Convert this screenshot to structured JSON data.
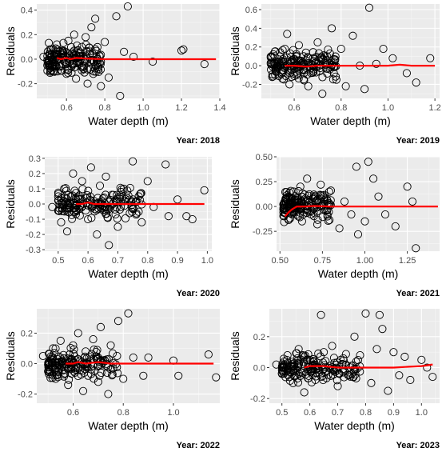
{
  "chart_data": [
    {
      "type": "scatter",
      "caption": "Year: 2018",
      "xlabel": "Water depth (m)",
      "ylabel": "Residuals",
      "xlim": [
        0.445,
        1.4
      ],
      "ylim": [
        -0.32,
        0.45
      ],
      "xticks": [
        {
          "v": 0.6,
          "t": "0.6"
        },
        {
          "v": 0.8,
          "t": "0.8"
        },
        {
          "v": 1.0,
          "t": "1.0"
        },
        {
          "v": 1.2,
          "t": "1.2"
        },
        {
          "v": 1.4,
          "t": "1.4"
        }
      ],
      "yticks": [
        {
          "v": -0.2,
          "t": "-0.2"
        },
        {
          "v": 0.0,
          "t": "0.0"
        },
        {
          "v": 0.2,
          "t": "0.2"
        },
        {
          "v": 0.4,
          "t": "0.4"
        }
      ],
      "points_sampled": [
        [
          0.48,
          0.02
        ],
        [
          0.5,
          -0.05
        ],
        [
          0.52,
          0.08
        ],
        [
          0.53,
          -0.1
        ],
        [
          0.55,
          0.12
        ],
        [
          0.56,
          0.0
        ],
        [
          0.57,
          -0.06
        ],
        [
          0.58,
          0.05
        ],
        [
          0.6,
          -0.12
        ],
        [
          0.61,
          0.15
        ],
        [
          0.62,
          0.03
        ],
        [
          0.63,
          -0.04
        ],
        [
          0.64,
          0.2
        ],
        [
          0.65,
          -0.16
        ],
        [
          0.66,
          0.07
        ],
        [
          0.67,
          -0.02
        ],
        [
          0.68,
          0.1
        ],
        [
          0.69,
          -0.08
        ],
        [
          0.7,
          0.18
        ],
        [
          0.71,
          -0.2
        ],
        [
          0.72,
          0.04
        ],
        [
          0.73,
          0.26
        ],
        [
          0.74,
          -0.12
        ],
        [
          0.75,
          0.33
        ],
        [
          0.76,
          0.0
        ],
        [
          0.78,
          -0.22
        ],
        [
          0.8,
          0.14
        ],
        [
          0.82,
          -0.15
        ],
        [
          0.86,
          0.35
        ],
        [
          0.88,
          -0.3
        ],
        [
          0.9,
          0.06
        ],
        [
          0.92,
          0.43
        ],
        [
          0.95,
          0.02
        ],
        [
          1.05,
          -0.02
        ],
        [
          1.2,
          0.07
        ],
        [
          1.21,
          0.08
        ],
        [
          1.32,
          -0.04
        ]
      ],
      "fit_line": {
        "x": [
          0.55,
          0.57,
          0.6,
          0.62,
          0.65,
          0.7,
          0.8,
          1.0,
          1.2,
          1.38
        ],
        "y": [
          0.01,
          0.0,
          0.01,
          0.0,
          0.01,
          0.005,
          0.0,
          0.0,
          0.0,
          0.0
        ]
      }
    },
    {
      "type": "scatter",
      "caption": "Year: 2019",
      "xlabel": "Water depth (m)",
      "ylabel": "Residuals",
      "xlim": [
        0.46,
        1.22
      ],
      "ylim": [
        -0.35,
        0.66
      ],
      "xticks": [
        {
          "v": 0.6,
          "t": "0.6"
        },
        {
          "v": 0.8,
          "t": "0.8"
        },
        {
          "v": 1.0,
          "t": "1.0"
        },
        {
          "v": 1.2,
          "t": "1.2"
        }
      ],
      "yticks": [
        {
          "v": -0.2,
          "t": "-0.2"
        },
        {
          "v": 0.0,
          "t": "0.0"
        },
        {
          "v": 0.2,
          "t": "0.2"
        },
        {
          "v": 0.4,
          "t": "0.4"
        },
        {
          "v": 0.6,
          "t": "0.6"
        }
      ],
      "points_sampled": [
        [
          0.5,
          0.03
        ],
        [
          0.52,
          -0.06
        ],
        [
          0.54,
          0.1
        ],
        [
          0.55,
          -0.14
        ],
        [
          0.56,
          0.18
        ],
        [
          0.57,
          0.34
        ],
        [
          0.58,
          -0.2
        ],
        [
          0.6,
          0.05
        ],
        [
          0.61,
          -0.1
        ],
        [
          0.62,
          0.22
        ],
        [
          0.63,
          0.0
        ],
        [
          0.64,
          -0.04
        ],
        [
          0.65,
          0.14
        ],
        [
          0.66,
          -0.22
        ],
        [
          0.68,
          0.08
        ],
        [
          0.7,
          0.25
        ],
        [
          0.72,
          -0.3
        ],
        [
          0.74,
          0.1
        ],
        [
          0.76,
          0.4
        ],
        [
          0.78,
          -0.15
        ],
        [
          0.8,
          0.18
        ],
        [
          0.82,
          -0.22
        ],
        [
          0.85,
          0.32
        ],
        [
          0.88,
          0.0
        ],
        [
          0.9,
          -0.25
        ],
        [
          0.92,
          0.62
        ],
        [
          0.95,
          0.02
        ],
        [
          0.98,
          0.18
        ],
        [
          1.02,
          0.08
        ],
        [
          1.08,
          -0.08
        ],
        [
          1.12,
          -0.18
        ],
        [
          1.18,
          0.08
        ]
      ],
      "fit_line": {
        "x": [
          0.56,
          0.6,
          0.65,
          0.7,
          0.8,
          0.9,
          1.0,
          1.05,
          1.1,
          1.2
        ],
        "y": [
          0.0,
          0.0,
          -0.01,
          0.0,
          0.0,
          0.0,
          0.0,
          0.01,
          0.0,
          0.0
        ]
      }
    },
    {
      "type": "scatter",
      "caption": "Year: 2020",
      "xlabel": "Water depth (m)",
      "ylabel": "Residuals",
      "xlim": [
        0.455,
        1.015
      ],
      "ylim": [
        -0.31,
        0.31
      ],
      "xticks": [
        {
          "v": 0.5,
          "t": "0.5"
        },
        {
          "v": 0.6,
          "t": "0.6"
        },
        {
          "v": 0.7,
          "t": "0.7"
        },
        {
          "v": 0.8,
          "t": "0.8"
        },
        {
          "v": 0.9,
          "t": "0.9"
        },
        {
          "v": 1.0,
          "t": "1.0"
        }
      ],
      "yticks": [
        {
          "v": -0.3,
          "t": "-0.3"
        },
        {
          "v": -0.2,
          "t": "-0.2"
        },
        {
          "v": -0.1,
          "t": "-0.1"
        },
        {
          "v": 0.0,
          "t": "0.0"
        },
        {
          "v": 0.1,
          "t": "0.1"
        },
        {
          "v": 0.2,
          "t": "0.2"
        },
        {
          "v": 0.3,
          "t": "0.3"
        }
      ],
      "points_sampled": [
        [
          0.48,
          -0.02
        ],
        [
          0.5,
          0.05
        ],
        [
          0.51,
          -0.12
        ],
        [
          0.52,
          0.1
        ],
        [
          0.53,
          -0.18
        ],
        [
          0.55,
          0.2
        ],
        [
          0.56,
          -0.05
        ],
        [
          0.58,
          0.15
        ],
        [
          0.6,
          -0.1
        ],
        [
          0.61,
          0.24
        ],
        [
          0.62,
          0.02
        ],
        [
          0.63,
          -0.2
        ],
        [
          0.64,
          0.12
        ],
        [
          0.65,
          -0.04
        ],
        [
          0.66,
          0.18
        ],
        [
          0.67,
          -0.27
        ],
        [
          0.68,
          0.06
        ],
        [
          0.7,
          -0.15
        ],
        [
          0.72,
          0.1
        ],
        [
          0.74,
          -0.06
        ],
        [
          0.75,
          0.28
        ],
        [
          0.77,
          0.05
        ],
        [
          0.78,
          -0.12
        ],
        [
          0.8,
          0.15
        ],
        [
          0.82,
          -0.02
        ],
        [
          0.86,
          0.26
        ],
        [
          0.87,
          -0.08
        ],
        [
          0.9,
          0.03
        ],
        [
          0.93,
          -0.08
        ],
        [
          0.95,
          -0.1
        ],
        [
          0.99,
          0.09
        ]
      ],
      "fit_line": {
        "x": [
          0.56,
          0.58,
          0.6,
          0.62,
          0.65,
          0.7,
          0.8,
          0.9,
          0.99
        ],
        "y": [
          0.0,
          0.0,
          0.01,
          0.0,
          0.0,
          0.0,
          0.0,
          0.0,
          0.0
        ]
      }
    },
    {
      "type": "scatter",
      "caption": "Year: 2021",
      "xlabel": "Water depth (m)",
      "ylabel": "Residuals",
      "xlim": [
        0.48,
        1.44
      ],
      "ylim": [
        -0.45,
        0.5
      ],
      "xticks": [
        {
          "v": 0.5,
          "t": "0.50"
        },
        {
          "v": 0.75,
          "t": "0.75"
        },
        {
          "v": 1.0,
          "t": "1.00"
        },
        {
          "v": 1.25,
          "t": "1.25"
        }
      ],
      "yticks": [
        {
          "v": -0.25,
          "t": "-0.25"
        },
        {
          "v": 0.0,
          "t": "0.00"
        },
        {
          "v": 0.25,
          "t": "0.25"
        },
        {
          "v": 0.5,
          "t": "0.50"
        }
      ],
      "points_sampled": [
        [
          0.52,
          0.02
        ],
        [
          0.53,
          -0.06
        ],
        [
          0.55,
          0.1
        ],
        [
          0.56,
          -0.12
        ],
        [
          0.58,
          0.15
        ],
        [
          0.6,
          -0.02
        ],
        [
          0.62,
          0.2
        ],
        [
          0.63,
          -0.15
        ],
        [
          0.65,
          0.08
        ],
        [
          0.66,
          0.28
        ],
        [
          0.68,
          -0.05
        ],
        [
          0.7,
          0.12
        ],
        [
          0.72,
          -0.18
        ],
        [
          0.74,
          0.22
        ],
        [
          0.76,
          0.0
        ],
        [
          0.78,
          -0.1
        ],
        [
          0.8,
          0.16
        ],
        [
          0.85,
          -0.22
        ],
        [
          0.88,
          0.05
        ],
        [
          0.92,
          -0.08
        ],
        [
          0.95,
          0.4
        ],
        [
          0.96,
          -0.28
        ],
        [
          1.0,
          -0.15
        ],
        [
          1.02,
          0.45
        ],
        [
          1.05,
          0.28
        ],
        [
          1.08,
          0.1
        ],
        [
          1.12,
          -0.08
        ],
        [
          1.18,
          -0.2
        ],
        [
          1.25,
          0.2
        ],
        [
          1.28,
          0.05
        ],
        [
          1.3,
          -0.42
        ]
      ],
      "fit_line": {
        "x": [
          0.53,
          0.55,
          0.57,
          0.6,
          0.65,
          0.7,
          0.8,
          1.0,
          1.2,
          1.43
        ],
        "y": [
          -0.1,
          -0.06,
          -0.03,
          0.0,
          0.0,
          0.005,
          0.0,
          0.0,
          0.0,
          0.0
        ]
      }
    },
    {
      "type": "scatter",
      "caption": "Year: 2022",
      "xlabel": "Water depth (m)",
      "ylabel": "Residuals",
      "xlim": [
        0.455,
        1.185
      ],
      "ylim": [
        -0.26,
        0.36
      ],
      "xticks": [
        {
          "v": 0.6,
          "t": "0.6"
        },
        {
          "v": 0.8,
          "t": "0.8"
        },
        {
          "v": 1.0,
          "t": "1.0"
        }
      ],
      "yticks": [
        {
          "v": -0.2,
          "t": "-0.2"
        },
        {
          "v": 0.0,
          "t": "0.0"
        },
        {
          "v": 0.2,
          "t": "0.2"
        }
      ],
      "points_sampled": [
        [
          0.48,
          0.05
        ],
        [
          0.5,
          -0.05
        ],
        [
          0.52,
          0.1
        ],
        [
          0.53,
          -0.1
        ],
        [
          0.55,
          0.15
        ],
        [
          0.56,
          0.0
        ],
        [
          0.58,
          -0.14
        ],
        [
          0.6,
          0.12
        ],
        [
          0.61,
          -0.04
        ],
        [
          0.62,
          0.2
        ],
        [
          0.64,
          -0.18
        ],
        [
          0.65,
          0.08
        ],
        [
          0.66,
          -0.08
        ],
        [
          0.68,
          0.16
        ],
        [
          0.7,
          -0.12
        ],
        [
          0.71,
          0.24
        ],
        [
          0.72,
          0.02
        ],
        [
          0.74,
          -0.2
        ],
        [
          0.75,
          0.12
        ],
        [
          0.78,
          0.28
        ],
        [
          0.8,
          -0.1
        ],
        [
          0.82,
          0.33
        ],
        [
          0.84,
          0.04
        ],
        [
          0.88,
          -0.08
        ],
        [
          0.9,
          0.04
        ],
        [
          1.0,
          0.02
        ],
        [
          1.02,
          -0.08
        ],
        [
          1.14,
          0.06
        ],
        [
          1.17,
          -0.09
        ]
      ],
      "fit_line": {
        "x": [
          0.57,
          0.6,
          0.62,
          0.65,
          0.7,
          0.75,
          0.8,
          0.9,
          1.0,
          1.16
        ],
        "y": [
          0.0,
          0.0,
          0.01,
          0.0,
          0.01,
          0.0,
          0.0,
          0.0,
          0.0,
          0.0
        ]
      }
    },
    {
      "type": "scatter",
      "caption": "Year: 2023",
      "xlabel": "Water depth (m)",
      "ylabel": "Residuals",
      "xlim": [
        0.455,
        1.065
      ],
      "ylim": [
        -0.23,
        0.38
      ],
      "xticks": [
        {
          "v": 0.5,
          "t": "0.5"
        },
        {
          "v": 0.6,
          "t": "0.6"
        },
        {
          "v": 0.7,
          "t": "0.7"
        },
        {
          "v": 0.8,
          "t": "0.8"
        },
        {
          "v": 0.9,
          "t": "0.9"
        },
        {
          "v": 1.0,
          "t": "1.0"
        }
      ],
      "yticks": [
        {
          "v": -0.2,
          "t": "-0.2"
        },
        {
          "v": 0.0,
          "t": "0.0"
        },
        {
          "v": 0.2,
          "t": "0.2"
        }
      ],
      "points_sampled": [
        [
          0.48,
          0.02
        ],
        [
          0.5,
          -0.04
        ],
        [
          0.52,
          0.08
        ],
        [
          0.54,
          -0.1
        ],
        [
          0.56,
          0.12
        ],
        [
          0.58,
          -0.16
        ],
        [
          0.6,
          0.05
        ],
        [
          0.62,
          -0.08
        ],
        [
          0.64,
          0.34
        ],
        [
          0.65,
          0.1
        ],
        [
          0.66,
          -0.02
        ],
        [
          0.68,
          0.14
        ],
        [
          0.7,
          -0.12
        ],
        [
          0.72,
          0.06
        ],
        [
          0.74,
          -0.05
        ],
        [
          0.76,
          0.2
        ],
        [
          0.78,
          0.08
        ],
        [
          0.8,
          0.35
        ],
        [
          0.82,
          -0.1
        ],
        [
          0.84,
          0.12
        ],
        [
          0.85,
          0.34
        ],
        [
          0.86,
          0.25
        ],
        [
          0.88,
          -0.15
        ],
        [
          0.9,
          0.1
        ],
        [
          0.92,
          -0.05
        ],
        [
          0.94,
          0.07
        ],
        [
          0.96,
          -0.08
        ],
        [
          1.0,
          0.05
        ],
        [
          1.02,
          0.0
        ],
        [
          1.04,
          -0.06
        ]
      ],
      "fit_line": {
        "x": [
          0.58,
          0.6,
          0.65,
          0.7,
          0.75,
          0.8,
          0.85,
          0.9,
          0.95,
          1.0,
          1.04
        ],
        "y": [
          0.0,
          0.01,
          0.01,
          0.0,
          0.0,
          0.0,
          0.0,
          0.0,
          0.005,
          0.01,
          0.02
        ]
      }
    }
  ]
}
